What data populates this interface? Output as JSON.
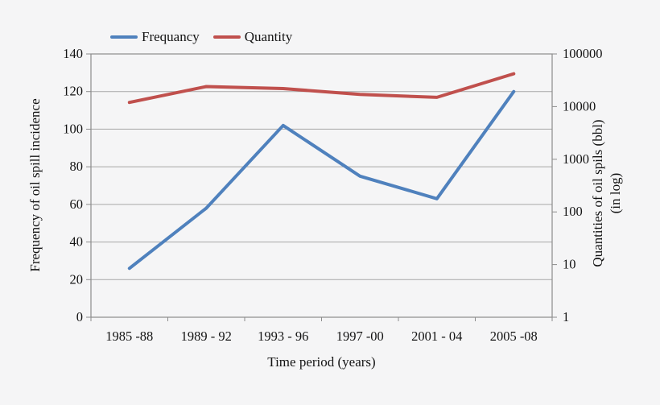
{
  "chart_data": {
    "type": "line",
    "title": "",
    "categories": [
      "1985 -88",
      "1989 - 92",
      "1993 - 96",
      "1997 -00",
      "2001 - 04",
      "2005 -08"
    ],
    "series": [
      {
        "name": "Frequancy",
        "axis": "left",
        "color": "#4f81bd",
        "values": [
          26,
          58,
          102,
          75,
          63,
          120
        ]
      },
      {
        "name": "Quantity",
        "axis": "right",
        "color": "#c0504d",
        "values": [
          12000,
          24000,
          22000,
          17000,
          15000,
          42000
        ]
      }
    ],
    "legend": [
      {
        "label": "Frequancy",
        "color": "#4f81bd"
      },
      {
        "label": "Quantity",
        "color": "#c0504d"
      }
    ],
    "legend_position": "top",
    "grid": true,
    "left_axis": {
      "label": "Frequency of oil spill incidence",
      "min": 0,
      "max": 140,
      "step": 20,
      "ticks": [
        "0",
        "20",
        "40",
        "60",
        "80",
        "100",
        "120",
        "140"
      ]
    },
    "right_axis": {
      "label_line1": "Quantities of oil spils (bbl)",
      "label_line2": "(in log)",
      "scale": "log",
      "min": 1,
      "max": 100000,
      "ticks": [
        "1",
        "10",
        "100",
        "1000",
        "10000",
        "100000"
      ]
    },
    "x_axis": {
      "label": "Time period (years)"
    },
    "colors": {
      "grid": "#a7a7a7",
      "frame": "#8c8c8c",
      "text": "#141414",
      "background": "#f5f5f6"
    }
  }
}
